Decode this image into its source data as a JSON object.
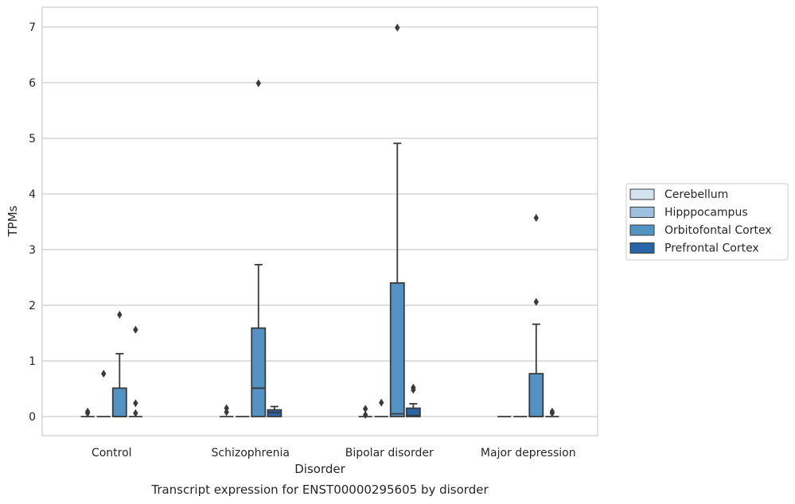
{
  "chart_data": {
    "type": "box",
    "title": "",
    "caption": "Transcript expression for ENST00000295605 by disorder",
    "xlabel": "Disorder",
    "ylabel": "TPMs",
    "ylim": [
      -0.35,
      7.35
    ],
    "yticks": [
      0,
      1,
      2,
      3,
      4,
      5,
      6,
      7
    ],
    "grid": "horizontal",
    "legend_position": "right",
    "categories": [
      "Control",
      "Schizophrenia",
      "Bipolar disorder",
      "Major depression"
    ],
    "series": [
      {
        "name": "Cerebellum",
        "color": "#d4e3f0",
        "boxes": [
          {
            "q1": 0,
            "median": 0,
            "q3": 0,
            "whisker_low": 0,
            "whisker_high": 0,
            "outliers": [
              0.06,
              0.09
            ]
          },
          {
            "q1": 0,
            "median": 0,
            "q3": 0,
            "whisker_low": 0,
            "whisker_high": 0,
            "outliers": [
              0.08,
              0.15
            ]
          },
          {
            "q1": 0,
            "median": 0,
            "q3": 0,
            "whisker_low": 0,
            "whisker_high": 0,
            "outliers": [
              0.03,
              0.14
            ]
          },
          {
            "q1": 0,
            "median": 0,
            "q3": 0,
            "whisker_low": 0,
            "whisker_high": 0,
            "outliers": []
          }
        ]
      },
      {
        "name": "Hipppocampus",
        "color": "#9cc0de",
        "boxes": [
          {
            "q1": 0,
            "median": 0,
            "q3": 0,
            "whisker_low": 0,
            "whisker_high": 0,
            "outliers": [
              0.77
            ]
          },
          {
            "q1": 0,
            "median": 0,
            "q3": 0,
            "whisker_low": 0,
            "whisker_high": 0,
            "outliers": []
          },
          {
            "q1": 0,
            "median": 0,
            "q3": 0,
            "whisker_low": 0,
            "whisker_high": 0,
            "outliers": [
              0.25
            ]
          },
          {
            "q1": 0,
            "median": 0,
            "q3": 0,
            "whisker_low": 0,
            "whisker_high": 0,
            "outliers": []
          }
        ]
      },
      {
        "name": "Orbitofontal Cortex",
        "color": "#5293c4",
        "boxes": [
          {
            "q1": 0,
            "median": 0,
            "q3": 0.51,
            "whisker_low": 0,
            "whisker_high": 1.13,
            "outliers": [
              1.83
            ]
          },
          {
            "q1": 0,
            "median": 0.51,
            "q3": 1.59,
            "whisker_low": 0,
            "whisker_high": 2.73,
            "outliers": [
              5.99
            ]
          },
          {
            "q1": 0,
            "median": 0.05,
            "q3": 2.4,
            "whisker_low": 0,
            "whisker_high": 4.91,
            "outliers": [
              6.99
            ]
          },
          {
            "q1": 0,
            "median": 0,
            "q3": 0.77,
            "whisker_low": 0,
            "whisker_high": 1.66,
            "outliers": [
              2.06,
              3.57
            ]
          }
        ]
      },
      {
        "name": "Prefrontal Cortex",
        "color": "#2866a8",
        "boxes": [
          {
            "q1": 0,
            "median": 0,
            "q3": 0,
            "whisker_low": 0,
            "whisker_high": 0,
            "outliers": [
              0.06,
              0.24,
              1.56
            ]
          },
          {
            "q1": 0,
            "median": 0.07,
            "q3": 0.12,
            "whisker_low": 0,
            "whisker_high": 0.18,
            "outliers": []
          },
          {
            "q1": 0,
            "median": 0.02,
            "q3": 0.15,
            "whisker_low": 0,
            "whisker_high": 0.23,
            "outliers": [
              0.48,
              0.52
            ]
          },
          {
            "q1": 0,
            "median": 0,
            "q3": 0,
            "whisker_low": 0,
            "whisker_high": 0,
            "outliers": [
              0.06,
              0.09
            ]
          }
        ]
      }
    ]
  }
}
